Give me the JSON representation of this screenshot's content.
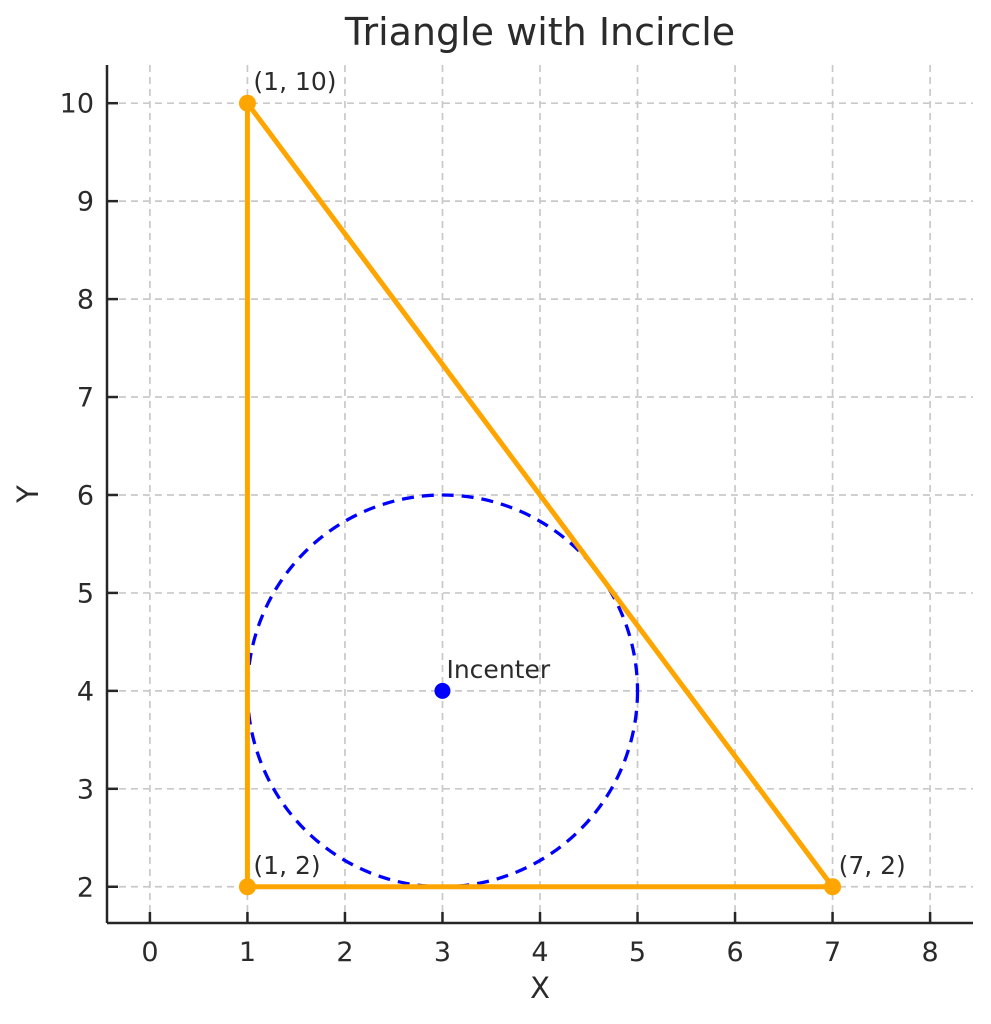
{
  "chart_data": {
    "type": "scatter",
    "title": "Triangle with Incircle",
    "xlabel": "X",
    "ylabel": "Y",
    "xlim": [
      -0.44,
      8.44
    ],
    "ylim": [
      1.63,
      10.39
    ],
    "x_ticks": [
      0,
      1,
      2,
      3,
      4,
      5,
      6,
      7,
      8
    ],
    "y_ticks": [
      2,
      3,
      4,
      5,
      6,
      7,
      8,
      9,
      10
    ],
    "grid": true,
    "grid_style": "dashed",
    "legend": "none",
    "triangle": {
      "name": "triangle",
      "color": "#FFA500",
      "linewidth": 5,
      "vertices": [
        {
          "x": 1,
          "y": 10,
          "label": "(1, 10)"
        },
        {
          "x": 1,
          "y": 2,
          "label": "(1, 2)"
        },
        {
          "x": 7,
          "y": 2,
          "label": "(7, 2)"
        }
      ]
    },
    "incircle": {
      "name": "incircle",
      "color": "#0000FF",
      "style": "dashed",
      "center": {
        "x": 3,
        "y": 4
      },
      "radius": 2
    },
    "incenter": {
      "x": 3,
      "y": 4,
      "label": "Incenter",
      "color": "#0000FF"
    },
    "colors": {
      "triangle": "#FFA500",
      "incircle": "#0000FF",
      "text": "#2b2b2b",
      "spine": "#262626",
      "grid": "#c9c9c9",
      "background": "#ffffff"
    }
  }
}
